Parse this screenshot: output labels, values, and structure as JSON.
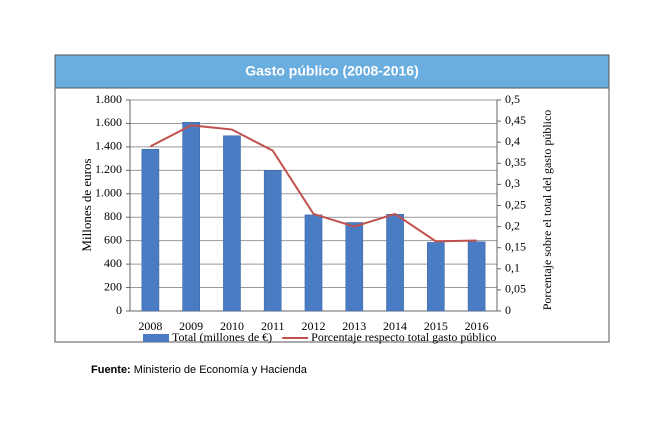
{
  "chart_data": {
    "type": "bar_line",
    "title": "Gasto público (2008-2016)",
    "categories": [
      "2008",
      "2009",
      "2010",
      "2011",
      "2012",
      "2013",
      "2014",
      "2015",
      "2016"
    ],
    "series": [
      {
        "name": "Total (millones de €)",
        "color": "#4a7cc4",
        "type": "bar",
        "values": [
          1380,
          1610,
          1495,
          1200,
          820,
          755,
          825,
          585,
          590
        ]
      },
      {
        "name": "Porcentaje respecto total gasto público",
        "color": "#c0504d",
        "type": "line",
        "axis": "y2",
        "values": [
          0.39,
          0.44,
          0.43,
          0.38,
          0.23,
          0.2,
          0.23,
          0.165,
          0.167
        ]
      }
    ],
    "ylabel": "Millones de euros",
    "y2label": "Porcentaje sobre el total del gasto público",
    "ylim": [
      0,
      1800
    ],
    "yticks": [
      0,
      200,
      400,
      600,
      800,
      {
        "value": 1000,
        "label": "1.000"
      },
      {
        "value": 1200,
        "label": "1.200"
      },
      {
        "value": 1400,
        "label": "1.400"
      },
      {
        "value": 1600,
        "label": "1.600"
      },
      {
        "value": 1800,
        "label": "1.800"
      }
    ],
    "y2lim": [
      0,
      0.5
    ],
    "y2ticks": [
      0,
      {
        "value": 0.05,
        "label": "0,05"
      },
      {
        "value": 0.1,
        "label": "0,1"
      },
      {
        "value": 0.15,
        "label": "0,15"
      },
      {
        "value": 0.2,
        "label": "0,2"
      },
      {
        "value": 0.25,
        "label": "0,25"
      },
      {
        "value": 0.3,
        "label": "0,3"
      },
      {
        "value": 0.35,
        "label": "0,35"
      },
      {
        "value": 0.4,
        "label": "0,4"
      },
      {
        "value": 0.45,
        "label": "0,45"
      },
      {
        "value": 0.5,
        "label": "0,5"
      }
    ],
    "grid": true,
    "legend": "bottom"
  },
  "footer": {
    "label": "Fuente:",
    "text": "Ministerio de Economía y Hacienda"
  }
}
